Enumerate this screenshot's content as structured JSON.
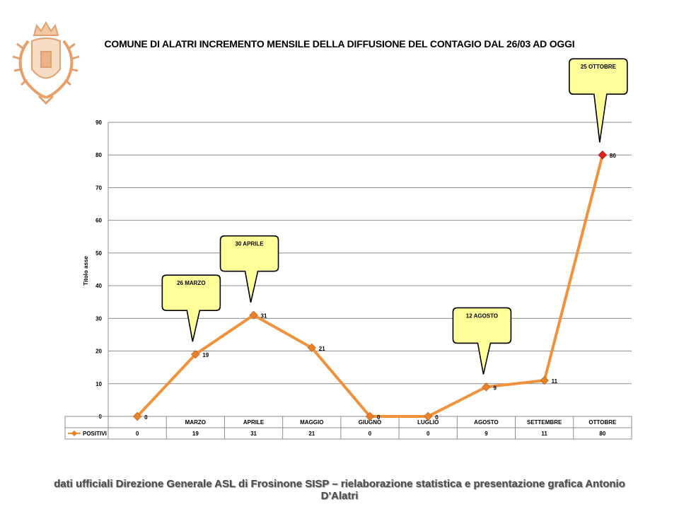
{
  "title": "COMUNE DI ALATRI INCREMENTO MENSILE DELLA DIFFUSIONE DEL CONTAGIO DAL 26/03 AD OGGI",
  "footer": "dati ufficiali Direzione Generale ASL di Frosinone SISP – rielaborazione statistica e presentazione grafica  Antonio D'Alatri",
  "colors": {
    "line": "#f0913c",
    "marker": "#e8822a",
    "highlight": "#e0231c",
    "callout_fill": "#ffff99"
  },
  "logo_icon": "coat-of-arms-icon",
  "chart_data": {
    "type": "line",
    "title": "COMUNE DI ALATRI INCREMENTO MENSILE DELLA DIFFUSIONE DEL CONTAGIO DAL 26/03 AD OGGI",
    "ylabel": "Titolo asse",
    "xlabel": "",
    "ylim": [
      0,
      90
    ],
    "yticks": [
      0,
      10,
      20,
      30,
      40,
      50,
      60,
      70,
      80,
      90
    ],
    "grid": true,
    "categories": [
      "",
      "MARZO",
      "APRILE",
      "MAGGIO",
      "GIUGNO",
      "LUGLIO",
      "AGOSTO",
      "SETTEMBRE",
      "OTTOBRE"
    ],
    "series": [
      {
        "name": "POSITIVI",
        "values": [
          0,
          19,
          31,
          21,
          0,
          0,
          9,
          11,
          80
        ]
      }
    ],
    "data_table": true,
    "annotations": [
      {
        "text": "26 MARZO",
        "category": "MARZO"
      },
      {
        "text": "30 APRILE",
        "category": "APRILE"
      },
      {
        "text": "12 AGOSTO",
        "category": "AGOSTO"
      },
      {
        "text": "25 OTTOBRE",
        "category": "OTTOBRE"
      }
    ],
    "highlight_category": "OTTOBRE"
  }
}
